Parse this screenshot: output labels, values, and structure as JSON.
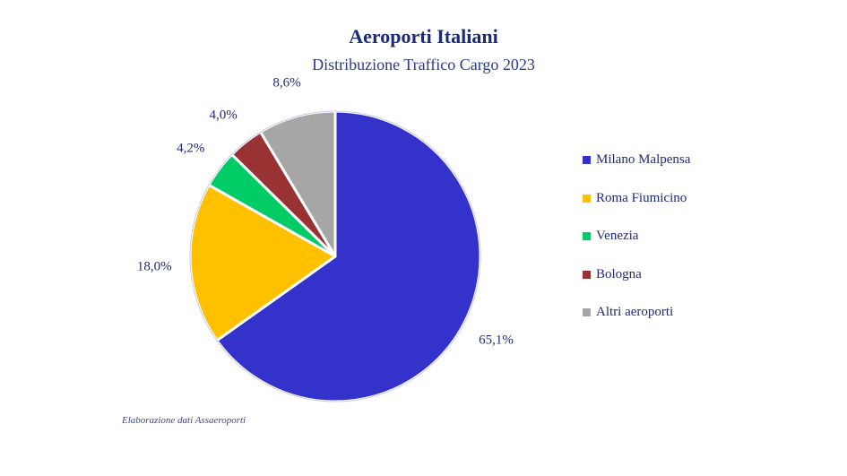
{
  "title": "Aeroporti Italiani",
  "subtitle": "Distribuzione Traffico Cargo 2023",
  "source": "Elaborazione dati Assaeroporti",
  "chart_data": {
    "type": "pie",
    "title": "Aeroporti Italiani",
    "subtitle": "Distribuzione Traffico Cargo 2023",
    "categories": [
      "Milano Malpensa",
      "Roma Fiumicino",
      "Venezia",
      "Bologna",
      "Altri aeroporti"
    ],
    "values": [
      65.1,
      18.0,
      4.2,
      4.0,
      8.6
    ],
    "labels": [
      "65,1%",
      "18,0%",
      "4,2%",
      "4,0%",
      "8,6%"
    ],
    "colors": [
      "#3333cc",
      "#ffc000",
      "#00cc66",
      "#993333",
      "#a6a6a6"
    ],
    "legend_position": "right",
    "start": "top",
    "direction": "clockwise"
  }
}
